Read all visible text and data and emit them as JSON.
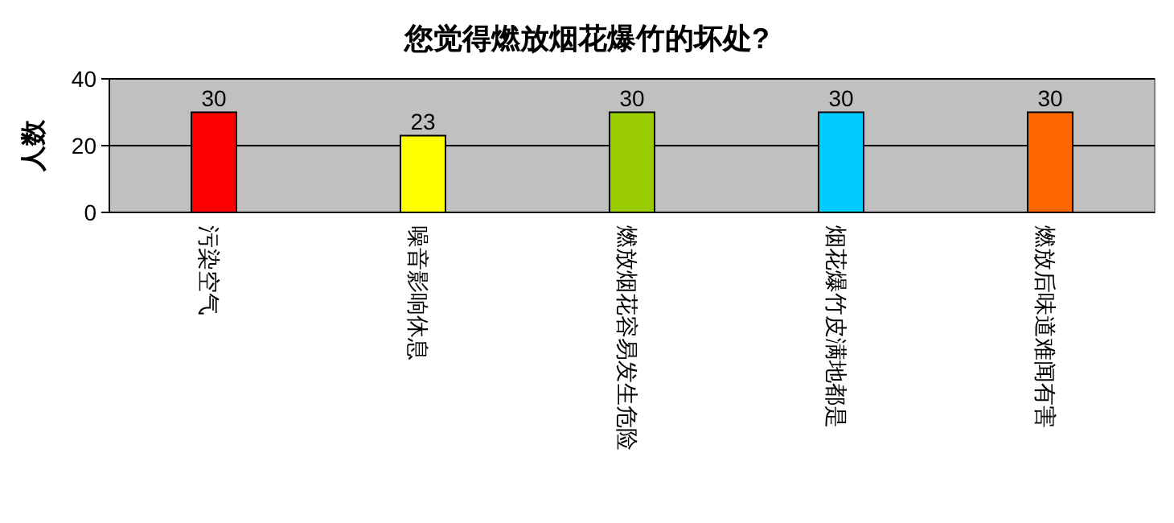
{
  "chart_data": {
    "type": "bar",
    "title": "您觉得燃放烟花爆竹的坏处?",
    "ylabel": "人数",
    "categories": [
      "污染空气",
      "噪音影响休息",
      "燃放烟花容易发生危险",
      "烟花爆竹皮满地都是",
      "燃放后味道难闻有害"
    ],
    "values": [
      30,
      23,
      30,
      30,
      30
    ],
    "colors": [
      "#ff0000",
      "#ffff00",
      "#99cc00",
      "#00ccff",
      "#ff6600"
    ],
    "ylim": [
      0,
      40
    ],
    "yticks": [
      0,
      20,
      40
    ],
    "grid": "y",
    "data_labels": true
  }
}
